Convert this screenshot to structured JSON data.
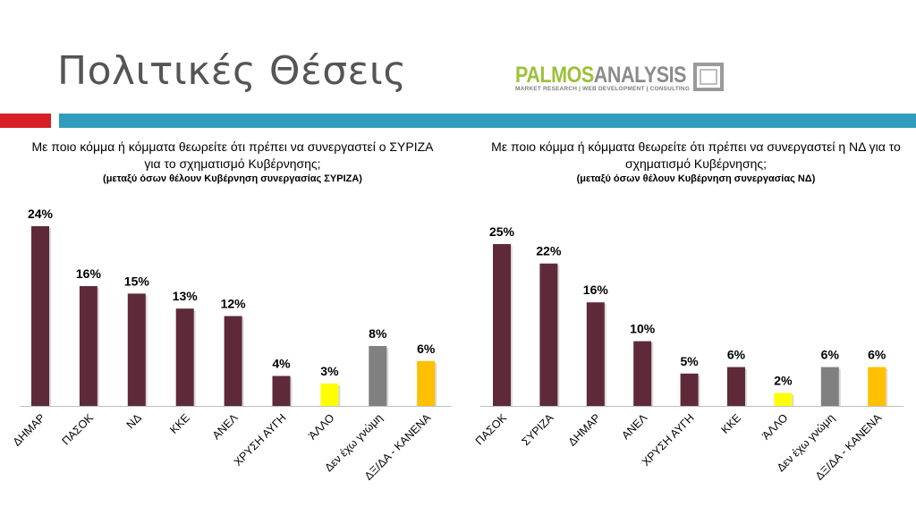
{
  "page": {
    "title": "Πολιτικές Θέσεις"
  },
  "logo": {
    "part1": "PALMOS",
    "part2": "ANALYSIS",
    "tagline": "MARKET RESEARCH | WEB DEVELOPMENT | CONSULTING",
    "colors": {
      "green": "#9cc13a",
      "gray": "#8c8c8c"
    }
  },
  "colors": {
    "maroon": "#5e2a3a",
    "yellow": "#ffff00",
    "gray": "#808080",
    "orange": "#ffc000",
    "accent_red": "#d71f26",
    "accent_blue": "#2f9bbd"
  },
  "chart_data": [
    {
      "type": "bar",
      "title": "Με ποιο κόμμα ή κόμματα θεωρείτε ότι πρέπει να συνεργαστεί ο ΣΥΡΙΖΑ για το σχηματισμό Κυβέρνησης;",
      "subtitle": "(μεταξύ όσων θέλουν Κυβέρνηση συνεργασίας ΣΥΡΙΖΑ)",
      "categories": [
        "ΔΗΜΑΡ",
        "ΠΑΣΟΚ",
        "ΝΔ",
        "ΚΚΕ",
        "ΑΝΕΛ",
        "ΧΡΥΣΗ ΑΥΓΗ",
        "ΆΛΛΟ",
        "Δεν έχω γνώμη",
        "ΔΞ/ΔΑ - ΚΑΝΕΝΑ"
      ],
      "values": [
        24,
        16,
        15,
        13,
        12,
        4,
        3,
        8,
        6
      ],
      "data_labels": [
        "24%",
        "16%",
        "15%",
        "13%",
        "12%",
        "4%",
        "3%",
        "8%",
        "6%"
      ],
      "colors": [
        "maroon",
        "maroon",
        "maroon",
        "maroon",
        "maroon",
        "maroon",
        "yellow",
        "gray",
        "orange"
      ],
      "xlabel": "",
      "ylabel": "",
      "ylim": [
        0,
        24
      ]
    },
    {
      "type": "bar",
      "title": "Με ποιο κόμμα ή κόμματα θεωρείτε ότι πρέπει να συνεργαστεί η ΝΔ για το σχηματισμό Κυβέρνησης;",
      "subtitle": "(μεταξύ όσων θέλουν Κυβέρνηση συνεργασίας ΝΔ)",
      "categories": [
        "ΠΑΣΟΚ",
        "ΣΥΡΙΖΑ",
        "ΔΗΜΑΡ",
        "ΑΝΕΛ",
        "ΧΡΥΣΗ ΑΥΓΗ",
        "ΚΚΕ",
        "ΆΛΛΟ",
        "Δεν έχω γνώμη",
        "ΔΞ/ΔΑ - ΚΑΝΕΝΑ"
      ],
      "values": [
        25,
        22,
        16,
        10,
        5,
        6,
        2,
        6,
        6
      ],
      "data_labels": [
        "25%",
        "22%",
        "16%",
        "10%",
        "5%",
        "6%",
        "2%",
        "6%",
        "6%"
      ],
      "colors": [
        "maroon",
        "maroon",
        "maroon",
        "maroon",
        "maroon",
        "maroon",
        "yellow",
        "gray",
        "orange"
      ],
      "xlabel": "",
      "ylabel": "",
      "ylim": [
        0,
        25
      ]
    }
  ]
}
